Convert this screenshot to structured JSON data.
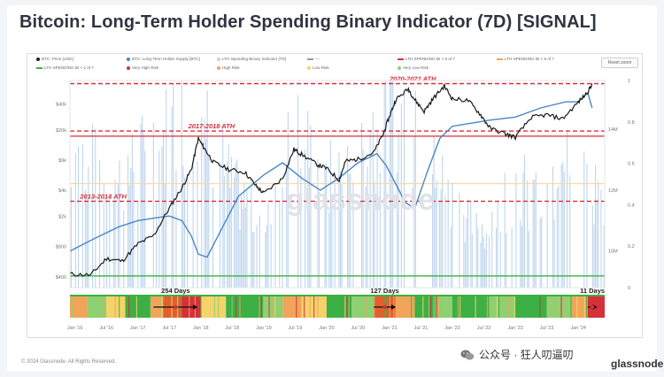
{
  "page_title": "Bitcoin: Long-Term Holder Spending Binary Indicator (7D) [SIGNAL]",
  "legend": [
    {
      "label": "BTC: Price [USD]",
      "color": "#222222",
      "kind": "dot"
    },
    {
      "label": "BTC: Long-Term Holder Supply [BTC]",
      "color": "#4a86c6",
      "kind": "dot"
    },
    {
      "label": "LTH Spending Binary Indicator [7D]",
      "color": "#bcd4ec",
      "kind": "dot"
    },
    {
      "label": "—",
      "color": "#999999",
      "kind": "dash"
    },
    {
      "label": "LTH SPENDING BI > 6 of 7",
      "color": "#d6303a",
      "kind": "dash"
    },
    {
      "label": "LTH SPENDING BI < 6 of 7",
      "color": "#f0a55a",
      "kind": "dash"
    },
    {
      "label": "LTH SPENDING BI < 1 of 7",
      "color": "#3cb044",
      "kind": "dash"
    },
    {
      "label": "Very High Risk",
      "color": "#d6303a",
      "kind": "dot"
    },
    {
      "label": "High Risk",
      "color": "#f0a55a",
      "kind": "dot"
    },
    {
      "label": "Low Risk",
      "color": "#f5d36a",
      "kind": "dot"
    },
    {
      "label": "Very Low Risk",
      "color": "#8fd071",
      "kind": "dot"
    }
  ],
  "reset_zoom_label": "Reset zoom",
  "colors": {
    "price": "#1a1a1a",
    "lth_supply": "#4a86c6",
    "binary_bars": "#a9c8e6",
    "very_high": "#d6303a",
    "high": "#f0a55a",
    "low_line": "#f5d9a8",
    "green": "#3cb044"
  },
  "chart_data": {
    "type": "line",
    "title": "Bitcoin: Long-Term Holder Spending Binary Indicator (7D) [SIGNAL]",
    "x_ticks": [
      "Jan '16",
      "Jul '16",
      "Jan '17",
      "Jul '17",
      "Jan '18",
      "Jul '18",
      "Jan '19",
      "Jul '19",
      "Jan '20",
      "Jul '20",
      "Jan '21",
      "Jul '21",
      "Jan '22",
      "Jul '22",
      "Jan '23",
      "Jul '23",
      "Jan '24"
    ],
    "x_range": [
      2015.92,
      2024.42
    ],
    "y_left_scale": "log",
    "y_left_ticks": [
      {
        "label": "$400",
        "value": 400
      },
      {
        "label": "$900",
        "value": 900
      },
      {
        "label": "$2k",
        "value": 2000
      },
      {
        "label": "$4k",
        "value": 4000
      },
      {
        "label": "$9k",
        "value": 9000
      },
      {
        "label": "$20k",
        "value": 20000
      },
      {
        "label": "$40k",
        "value": 40000
      }
    ],
    "y_left_range": [
      300,
      75000
    ],
    "y_right_ticks": [
      {
        "label": "14M",
        "value": 14
      },
      {
        "label": "12M",
        "value": 12
      },
      {
        "label": "10M",
        "value": 10
      }
    ],
    "y_right_range": [
      8.8,
      15.6
    ],
    "y_right2_ticks": [
      "1",
      "0.8",
      "0.6",
      "0.4",
      "0.2",
      "0"
    ],
    "y_right2_range": [
      0,
      1
    ],
    "series": [
      {
        "name": "BTC: Price [USD]",
        "x": [
          2015.92,
          2016.25,
          2016.5,
          2016.75,
          2017.0,
          2017.25,
          2017.5,
          2017.7,
          2017.85,
          2017.96,
          2018.05,
          2018.2,
          2018.45,
          2018.7,
          2018.88,
          2019.0,
          2019.3,
          2019.48,
          2019.6,
          2019.85,
          2020.0,
          2020.2,
          2020.3,
          2020.5,
          2020.75,
          2020.9,
          2021.0,
          2021.1,
          2021.3,
          2021.4,
          2021.55,
          2021.7,
          2021.87,
          2022.0,
          2022.25,
          2022.45,
          2022.6,
          2022.85,
          2023.0,
          2023.25,
          2023.5,
          2023.75,
          2024.0,
          2024.15,
          2024.22
        ],
        "values": [
          430,
          420,
          650,
          610,
          960,
          1200,
          2500,
          4300,
          7000,
          16000,
          12500,
          8500,
          7000,
          6500,
          4500,
          3700,
          5500,
          12000,
          10500,
          8000,
          7200,
          5300,
          8700,
          9200,
          11000,
          18000,
          29000,
          45000,
          60000,
          45000,
          33000,
          47000,
          65000,
          46000,
          44000,
          30000,
          21000,
          18000,
          16500,
          28000,
          30000,
          27000,
          42000,
          55000,
          69000
        ]
      },
      {
        "name": "BTC: Long-Term Holder Supply [BTC]",
        "x": [
          2015.92,
          2016.3,
          2016.7,
          2017.0,
          2017.3,
          2017.5,
          2017.7,
          2017.85,
          2017.96,
          2018.1,
          2018.3,
          2018.6,
          2019.0,
          2019.3,
          2019.6,
          2019.9,
          2020.2,
          2020.5,
          2020.8,
          2020.95,
          2021.1,
          2021.25,
          2021.4,
          2021.6,
          2021.8,
          2022.0,
          2022.3,
          2022.6,
          2023.0,
          2023.4,
          2023.8,
          2024.0,
          2024.15,
          2024.22
        ],
        "values": [
          10.0,
          10.4,
          10.8,
          11.0,
          11.1,
          11.15,
          11.0,
          10.5,
          9.9,
          9.8,
          10.6,
          11.8,
          12.5,
          12.9,
          12.4,
          12.0,
          12.4,
          12.9,
          13.2,
          12.8,
          12.2,
          11.6,
          11.4,
          12.6,
          13.7,
          14.1,
          14.2,
          14.3,
          14.4,
          14.7,
          14.9,
          14.9,
          15.2,
          14.7
        ]
      },
      {
        "name": "LTH Spending Binary Indicator [7D]",
        "x": [
          2016.0,
          2016.5,
          2017.0,
          2017.5,
          2017.96,
          2018.5,
          2019.0,
          2019.5,
          2020.0,
          2020.5,
          2021.0,
          2021.5,
          2022.0,
          2022.5,
          2023.0,
          2023.5,
          2024.0,
          2024.22
        ],
        "values": [
          0.7,
          0.55,
          0.65,
          0.8,
          1.0,
          0.5,
          0.35,
          0.8,
          0.55,
          0.65,
          1.0,
          0.7,
          0.45,
          0.3,
          0.55,
          0.4,
          0.7,
          1.0
        ]
      }
    ],
    "hlines": [
      {
        "value": 3000,
        "color": "#d6303a",
        "style": "dashed"
      },
      {
        "value": 19500,
        "color": "#d6303a",
        "style": "dashed"
      },
      {
        "value": 69000,
        "color": "#d6303a",
        "style": "dashed"
      },
      {
        "value": 17000,
        "color": "#d6303a",
        "style": "solid"
      },
      {
        "value": 4800,
        "color": "#f5d9a8",
        "style": "solid"
      },
      {
        "value": 410,
        "color": "#3cb044",
        "style": "solid"
      }
    ],
    "annotations": [
      {
        "text": "2013-2014 ATH",
        "x": 2016.08,
        "y": 3000
      },
      {
        "text": "2017-2018 ATH",
        "x": 2017.8,
        "y": 19500
      },
      {
        "text": "2020-2021 ATH",
        "x": 2021.0,
        "y": 69000
      }
    ],
    "streak_labels": [
      {
        "text": "254 Days",
        "x_start": 2017.25,
        "x_end": 2017.95
      },
      {
        "text": "127 Days",
        "x_start": 2020.75,
        "x_end": 2021.1
      },
      {
        "text": "11 Days",
        "x_start": 2024.15,
        "x_end": 2024.3
      }
    ],
    "risk_heatmap": [
      {
        "start": 2015.92,
        "end": 2016.2,
        "color": "#f0a55a"
      },
      {
        "start": 2016.2,
        "end": 2016.5,
        "color": "#8fd071"
      },
      {
        "start": 2016.5,
        "end": 2016.8,
        "color": "#f5d36a"
      },
      {
        "start": 2016.8,
        "end": 2017.2,
        "color": "#3cb044"
      },
      {
        "start": 2017.2,
        "end": 2017.4,
        "color": "#f0a55a"
      },
      {
        "start": 2017.4,
        "end": 2017.7,
        "color": "#e06030"
      },
      {
        "start": 2017.7,
        "end": 2018.0,
        "color": "#d6303a"
      },
      {
        "start": 2018.0,
        "end": 2018.4,
        "color": "#f5d36a"
      },
      {
        "start": 2018.4,
        "end": 2019.0,
        "color": "#3cb044"
      },
      {
        "start": 2019.0,
        "end": 2019.3,
        "color": "#8fd071"
      },
      {
        "start": 2019.3,
        "end": 2019.6,
        "color": "#f0a55a"
      },
      {
        "start": 2019.6,
        "end": 2020.0,
        "color": "#f5d36a"
      },
      {
        "start": 2020.0,
        "end": 2020.4,
        "color": "#3cb044"
      },
      {
        "start": 2020.4,
        "end": 2020.75,
        "color": "#8fd071"
      },
      {
        "start": 2020.75,
        "end": 2021.1,
        "color": "#e06030"
      },
      {
        "start": 2021.1,
        "end": 2021.4,
        "color": "#f0a55a"
      },
      {
        "start": 2021.4,
        "end": 2021.7,
        "color": "#3cb044"
      },
      {
        "start": 2021.7,
        "end": 2022.0,
        "color": "#8fd071"
      },
      {
        "start": 2022.0,
        "end": 2022.6,
        "color": "#3cb044"
      },
      {
        "start": 2022.6,
        "end": 2023.0,
        "color": "#8fd071"
      },
      {
        "start": 2023.0,
        "end": 2023.5,
        "color": "#3cb044"
      },
      {
        "start": 2023.5,
        "end": 2023.9,
        "color": "#8fd071"
      },
      {
        "start": 2023.9,
        "end": 2024.15,
        "color": "#f0a55a"
      },
      {
        "start": 2024.15,
        "end": 2024.42,
        "color": "#d6303a"
      }
    ]
  },
  "watermark": "glassnode",
  "copyright": "© 2024 Glassnode. All Rights Reserved.",
  "wechat_text": "公众号 · 狂人叨逼叨",
  "brand_text": "glassnode"
}
